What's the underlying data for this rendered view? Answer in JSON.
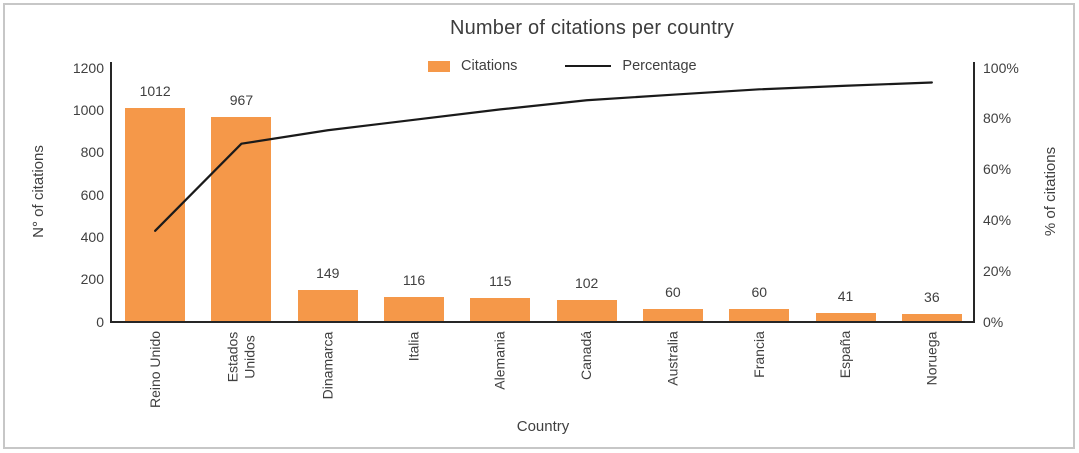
{
  "chart_data": {
    "type": "pareto (bar + cumulative line)",
    "title": "Number of citations per country",
    "xlabel": "Country",
    "ylabel_left": "N° of citations",
    "ylabel_right": "% of citations",
    "categories": [
      "Reino Unido",
      "Estados\nUnidos",
      "Dinamarca",
      "Italia",
      "Alemania",
      "Canadá",
      "Australia",
      "Francia",
      "España",
      "Noruega"
    ],
    "series": [
      {
        "name": "Citations",
        "type": "bar",
        "axis": "left",
        "values": [
          1012,
          967,
          149,
          116,
          115,
          102,
          60,
          60,
          41,
          36
        ]
      },
      {
        "name": "Percentage",
        "type": "line",
        "axis": "right",
        "unit": "%",
        "values": [
          35.9,
          70.2,
          75.5,
          79.6,
          83.7,
          87.3,
          89.5,
          91.6,
          93.0,
          94.3
        ]
      }
    ],
    "bar_value_labels": [
      "1012",
      "967",
      "149",
      "116",
      "115",
      "102",
      "60",
      "60",
      "41",
      "36"
    ],
    "y_left_ticks": [
      "0",
      "200",
      "400",
      "600",
      "800",
      "1000",
      "1200"
    ],
    "y_right_ticks": [
      "0%",
      "20%",
      "40%",
      "60%",
      "80%",
      "100%"
    ],
    "ylim_left": [
      0,
      1200
    ],
    "ylim_right_percent": [
      0,
      100
    ],
    "grid": false,
    "legend_position": "top-center",
    "bar_color": "#F59849",
    "line_color": "#1a1a1a",
    "text_color": "#404040"
  }
}
